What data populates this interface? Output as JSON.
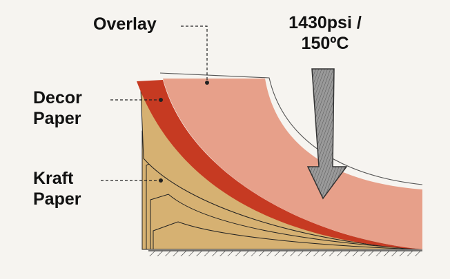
{
  "labels": {
    "overlay": "Overlay",
    "pressure_line1": "1430psi /",
    "pressure_line2": "150ºC",
    "decor_line1": "Decor",
    "decor_line2": "Paper",
    "kraft_line1": "Kraft",
    "kraft_line2": "Paper"
  },
  "colors": {
    "background": "#f6f4f0",
    "overlay": "#ffffff",
    "decor_paper": "#e7a08a",
    "decor_red": "#c63a22",
    "kraft_paper": "#d6b172",
    "arrow": "#8a8a8a",
    "outline": "#333333"
  },
  "icons": {
    "pressure_arrow": "down-arrow-icon",
    "base": "hatched-base"
  }
}
